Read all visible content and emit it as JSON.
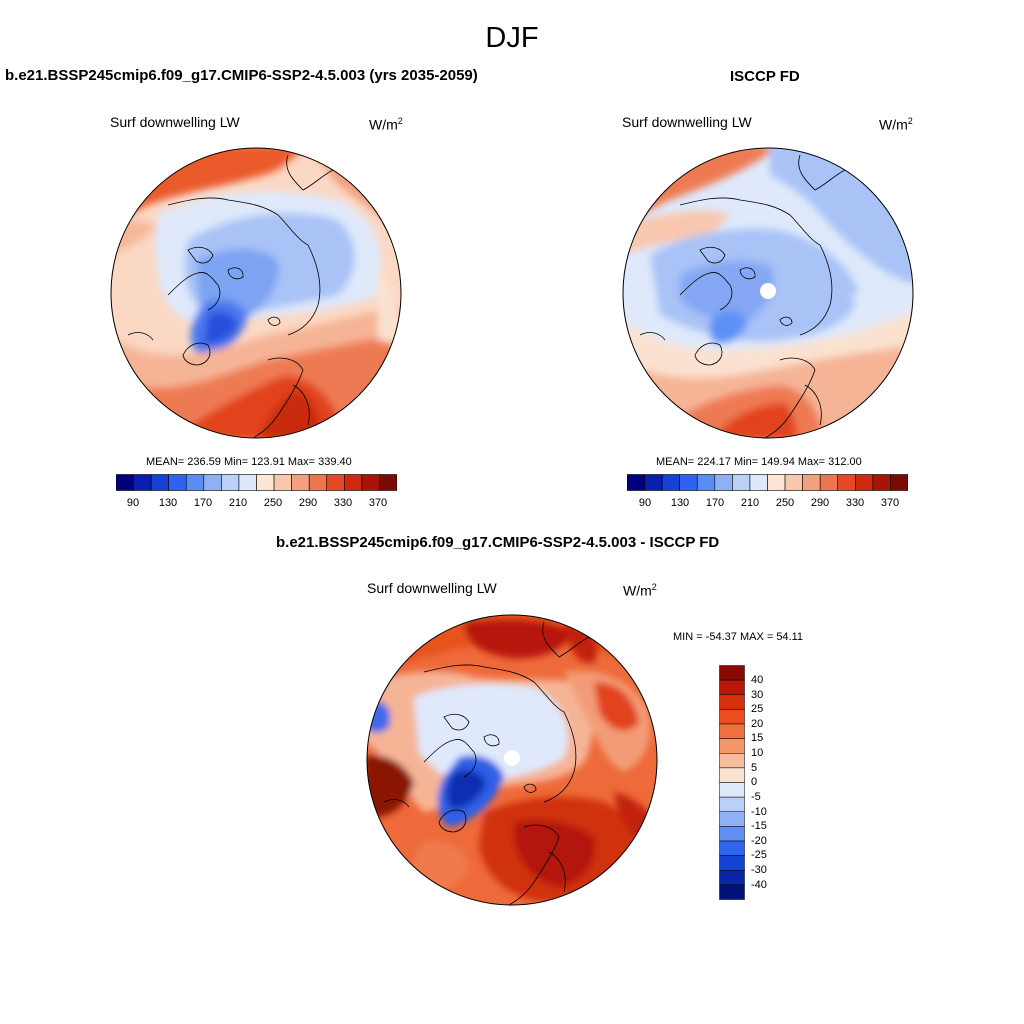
{
  "figure": {
    "season": "DJF",
    "panels": [
      {
        "title": "b.e21.BSSP245cmip6.f09_g17.CMIP6-SSP2-4.5.003 (yrs 2035-2059)",
        "variable": "Surf downwelling LW",
        "units": "W/m",
        "units_sup": "2",
        "stats": "MEAN= 236.59  Min= 123.91  Max= 339.40",
        "mean": 236.59,
        "min": 123.91,
        "max": 339.4
      },
      {
        "title": "ISCCP FD",
        "variable": "Surf downwelling LW",
        "units": "W/m",
        "units_sup": "2",
        "stats": "MEAN= 224.17  Min= 149.94  Max= 312.00",
        "mean": 224.17,
        "min": 149.94,
        "max": 312.0
      },
      {
        "title": "b.e21.BSSP245cmip6.f09_g17.CMIP6-SSP2-4.5.003 - ISCCP FD",
        "variable": "Surf downwelling LW",
        "units": "W/m",
        "units_sup": "2",
        "stats": "MIN = -54.37 MAX =  54.11",
        "min": -54.37,
        "max": 54.11
      }
    ]
  },
  "colorbars": {
    "abs_labels": [
      "90",
      "130",
      "170",
      "210",
      "250",
      "290",
      "330",
      "370"
    ],
    "abs_colors": [
      "#00007f",
      "#0a1fb0",
      "#1640d8",
      "#2e62f0",
      "#5b8cf5",
      "#8fb0f7",
      "#bcd1f8",
      "#dde9fb",
      "#fde6d6",
      "#f8c7ae",
      "#f39f80",
      "#ee764f",
      "#e54a25",
      "#cd2a0e",
      "#a8140a",
      "#7a0a04"
    ],
    "diff_labels": [
      "40",
      "30",
      "25",
      "20",
      "15",
      "10",
      "5",
      "0",
      "-5",
      "-10",
      "-15",
      "-20",
      "-25",
      "-30",
      "-40"
    ],
    "diff_colors": [
      "#8a0a03",
      "#b8170a",
      "#d72e0e",
      "#ea4d1f",
      "#f06f3e",
      "#f4966a",
      "#f7bc9c",
      "#fbe2d0",
      "#dfe9fb",
      "#bad0f8",
      "#8fb2f6",
      "#5d8ff5",
      "#2f64ee",
      "#1443d4",
      "#0727a6",
      "#00127a"
    ]
  }
}
